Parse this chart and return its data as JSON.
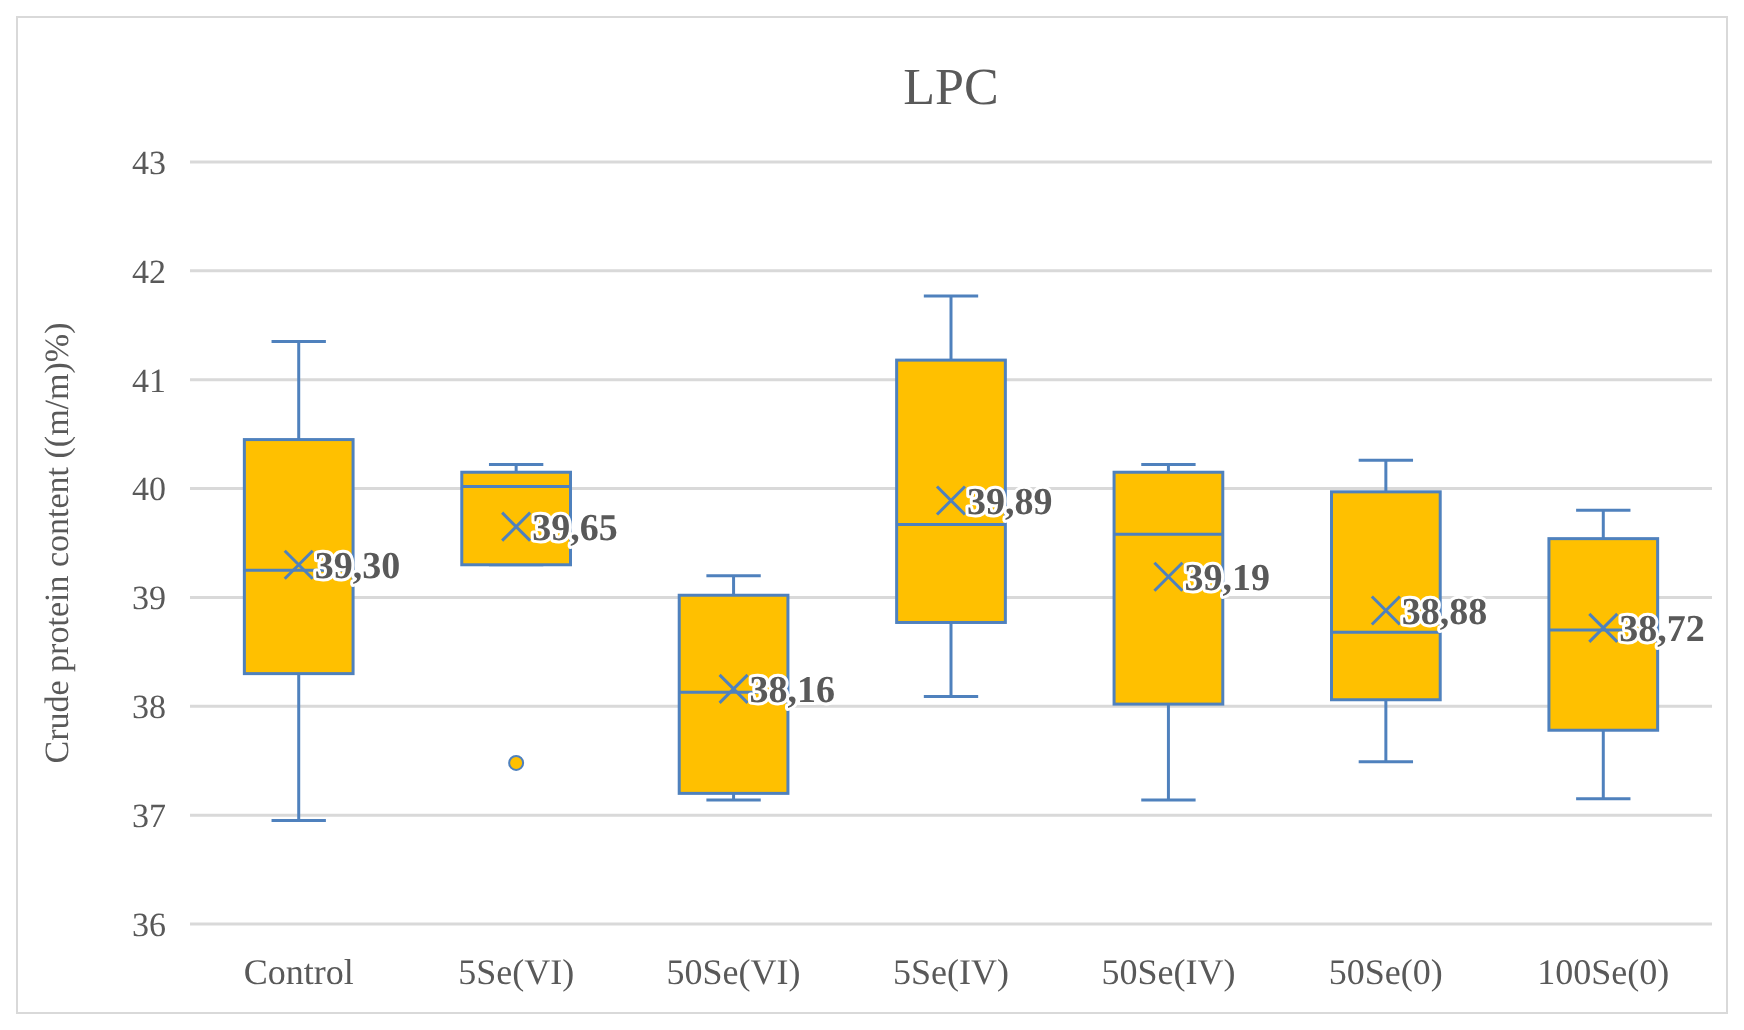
{
  "chart_data": {
    "type": "box",
    "title": "LPC",
    "ylabel": "Crude protein content ((m/m)%)",
    "categories": [
      "Control",
      "5Se(VI)",
      "50Se(VI)",
      "5Se(IV)",
      "50Se(IV)",
      "50Se(0)",
      "100Se(0)"
    ],
    "boxes": [
      {
        "low": 36.95,
        "q1": 38.3,
        "median": 39.25,
        "q3": 40.45,
        "high": 41.35,
        "mean": 39.3
      },
      {
        "low": 39.3,
        "q1": 39.3,
        "median": 40.02,
        "q3": 40.15,
        "high": 40.22,
        "mean": 39.65,
        "outliers": [
          37.48
        ]
      },
      {
        "low": 37.14,
        "q1": 37.2,
        "median": 38.13,
        "q3": 39.02,
        "high": 39.2,
        "mean": 38.16
      },
      {
        "low": 38.09,
        "q1": 38.77,
        "median": 39.67,
        "q3": 41.18,
        "high": 41.77,
        "mean": 39.89
      },
      {
        "low": 37.14,
        "q1": 38.02,
        "median": 39.58,
        "q3": 40.15,
        "high": 40.22,
        "mean": 39.19
      },
      {
        "low": 37.49,
        "q1": 38.06,
        "median": 38.68,
        "q3": 39.97,
        "high": 40.26,
        "mean": 38.88
      },
      {
        "low": 37.15,
        "q1": 37.78,
        "median": 38.7,
        "q3": 39.54,
        "high": 39.8,
        "mean": 38.72
      }
    ],
    "value_labels": [
      "39,30",
      "39,65",
      "38,16",
      "39,89",
      "39,19",
      "38,88",
      "38,72"
    ],
    "color": "#ffc000",
    "ylim": [
      36,
      43
    ],
    "yticks": [
      36,
      37,
      38,
      39,
      40,
      41,
      42,
      43
    ],
    "grid": "y",
    "marker": "cross"
  }
}
